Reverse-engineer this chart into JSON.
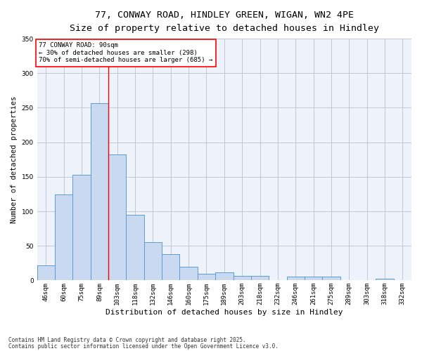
{
  "title1": "77, CONWAY ROAD, HINDLEY GREEN, WIGAN, WN2 4PE",
  "title2": "Size of property relative to detached houses in Hindley",
  "xlabel": "Distribution of detached houses by size in Hindley",
  "ylabel": "Number of detached properties",
  "categories": [
    "46sqm",
    "60sqm",
    "75sqm",
    "89sqm",
    "103sqm",
    "118sqm",
    "132sqm",
    "146sqm",
    "160sqm",
    "175sqm",
    "189sqm",
    "203sqm",
    "218sqm",
    "232sqm",
    "246sqm",
    "261sqm",
    "275sqm",
    "289sqm",
    "303sqm",
    "318sqm",
    "332sqm"
  ],
  "values": [
    22,
    124,
    153,
    257,
    182,
    95,
    55,
    38,
    20,
    10,
    12,
    7,
    7,
    0,
    5,
    5,
    5,
    0,
    0,
    2,
    0
  ],
  "bar_color": "#c9d9f0",
  "bar_edge_color": "#5b9bd5",
  "grid_color": "#c0c8d8",
  "background_color": "#eef2fb",
  "annotation_line1": "77 CONWAY ROAD: 90sqm",
  "annotation_line2": "← 30% of detached houses are smaller (298)",
  "annotation_line3": "70% of semi-detached houses are larger (685) →",
  "redline_x": 3.5,
  "ylim": [
    0,
    350
  ],
  "yticks": [
    0,
    50,
    100,
    150,
    200,
    250,
    300,
    350
  ],
  "footer_line1": "Contains HM Land Registry data © Crown copyright and database right 2025.",
  "footer_line2": "Contains public sector information licensed under the Open Government Licence v3.0.",
  "annotation_fontsize": 6.5,
  "title_fontsize1": 9.5,
  "title_fontsize2": 8.5,
  "tick_fontsize": 6.5,
  "ylabel_fontsize": 7.5,
  "xlabel_fontsize": 8,
  "footer_fontsize": 5.5
}
